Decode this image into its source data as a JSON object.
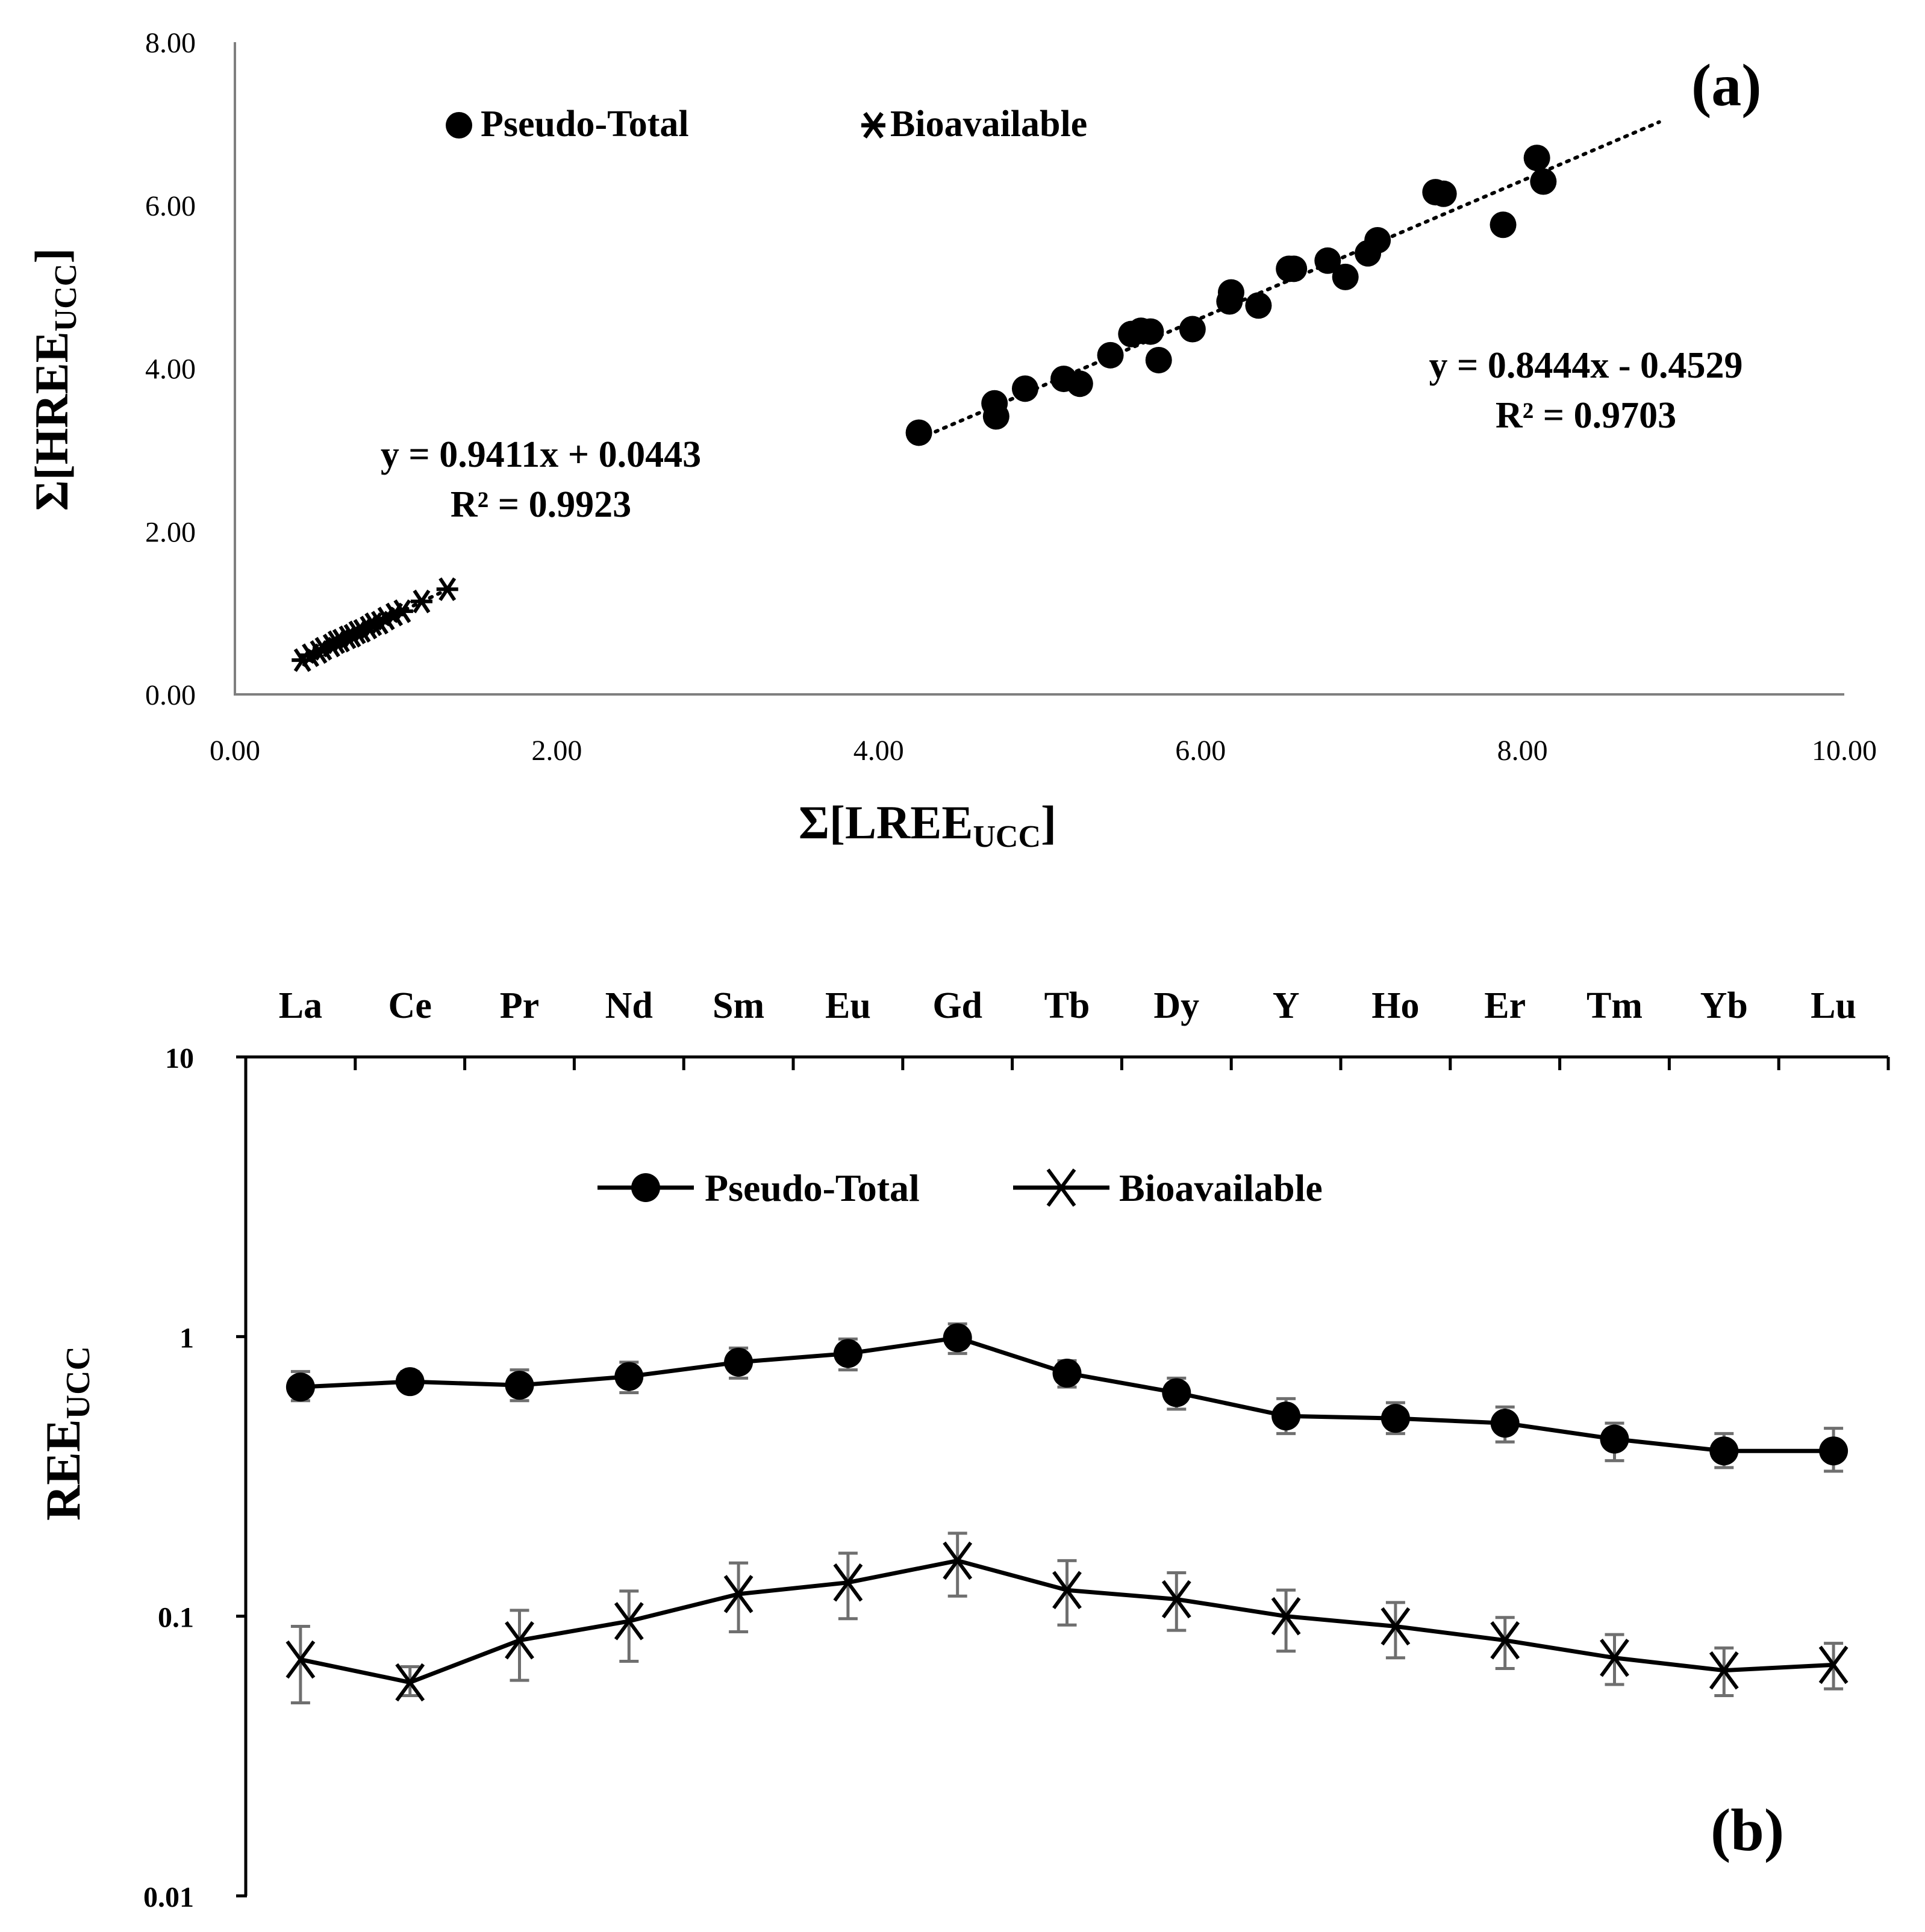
{
  "chart_data": [
    {
      "type": "scatter",
      "panel_label": "(a)",
      "xlabel_main": "Σ[LREE",
      "xlabel_sub": "UCC",
      "xlabel_close": "]",
      "ylabel_main": "Σ[HREE",
      "ylabel_sub": "UCC",
      "ylabel_close": "]",
      "xlim": [
        0,
        10
      ],
      "ylim": [
        0,
        8
      ],
      "x_ticks": [
        "0.00",
        "2.00",
        "4.00",
        "6.00",
        "8.00",
        "10.00"
      ],
      "y_ticks": [
        "0.00",
        "2.00",
        "4.00",
        "6.00",
        "8.00"
      ],
      "legend": [
        "Pseudo-Total",
        "Bioavailable"
      ],
      "series": [
        {
          "name": "Pseudo-Total",
          "marker": "circle",
          "points": [
            [
              4.25,
              3.21
            ],
            [
              4.72,
              3.57
            ],
            [
              4.73,
              3.41
            ],
            [
              4.91,
              3.75
            ],
            [
              5.15,
              3.87
            ],
            [
              5.25,
              3.81
            ],
            [
              5.44,
              4.16
            ],
            [
              5.57,
              4.42
            ],
            [
              5.63,
              4.46
            ],
            [
              5.69,
              4.45
            ],
            [
              5.74,
              4.1
            ],
            [
              5.95,
              4.48
            ],
            [
              6.18,
              4.82
            ],
            [
              6.19,
              4.93
            ],
            [
              6.36,
              4.77
            ],
            [
              6.55,
              5.22
            ],
            [
              6.58,
              5.22
            ],
            [
              6.79,
              5.32
            ],
            [
              6.9,
              5.12
            ],
            [
              7.04,
              5.41
            ],
            [
              7.1,
              5.57
            ],
            [
              7.46,
              6.16
            ],
            [
              7.51,
              6.14
            ],
            [
              7.88,
              5.76
            ],
            [
              8.09,
              6.58
            ],
            [
              8.13,
              6.29
            ]
          ],
          "trendline": {
            "equation": "y = 0.8444x - 0.4529",
            "r2": "R² = 0.9703",
            "x_range": [
              4.25,
              8.85
            ]
          }
        },
        {
          "name": "Bioavailable",
          "marker": "asterisk",
          "points": [
            [
              0.42,
              0.42
            ],
            [
              0.47,
              0.48
            ],
            [
              0.52,
              0.52
            ],
            [
              0.55,
              0.56
            ],
            [
              0.6,
              0.6
            ],
            [
              0.63,
              0.64
            ],
            [
              0.66,
              0.66
            ],
            [
              0.7,
              0.7
            ],
            [
              0.73,
              0.72
            ],
            [
              0.76,
              0.76
            ],
            [
              0.79,
              0.78
            ],
            [
              0.83,
              0.82
            ],
            [
              0.86,
              0.86
            ],
            [
              0.9,
              0.88
            ],
            [
              0.94,
              0.93
            ],
            [
              0.99,
              0.98
            ],
            [
              1.04,
              1.02
            ],
            [
              1.16,
              1.14
            ],
            [
              1.32,
              1.29
            ]
          ],
          "trendline": {
            "equation": "y = 0.9411x + 0.0443",
            "r2": "R² = 0.9923",
            "x_range": [
              0.4,
              1.35
            ]
          }
        }
      ]
    },
    {
      "type": "line",
      "panel_label": "(b)",
      "ylabel_main": "REE",
      "ylabel_sub": "UCC",
      "y_scale": "log",
      "ylim": [
        0.01,
        10
      ],
      "y_ticks": [
        "0.01",
        "0.1",
        "1",
        "10"
      ],
      "categories": [
        "La",
        "Ce",
        "Pr",
        "Nd",
        "Sm",
        "Eu",
        "Gd",
        "Tb",
        "Dy",
        "Y",
        "Ho",
        "Er",
        "Tm",
        "Yb",
        "Lu"
      ],
      "category_axis_position": "top",
      "legend": [
        "Pseudo-Total",
        "Bioavailable"
      ],
      "series": [
        {
          "name": "Pseudo-Total",
          "marker": "circle",
          "values": [
            0.66,
            0.69,
            0.67,
            0.72,
            0.81,
            0.87,
            0.99,
            0.74,
            0.63,
            0.52,
            0.51,
            0.49,
            0.43,
            0.39,
            0.39
          ],
          "err_low": [
            0.59,
            0.64,
            0.59,
            0.63,
            0.71,
            0.76,
            0.87,
            0.66,
            0.55,
            0.45,
            0.45,
            0.42,
            0.36,
            0.34,
            0.33
          ],
          "err_high": [
            0.75,
            0.75,
            0.76,
            0.81,
            0.91,
            0.98,
            1.11,
            0.82,
            0.71,
            0.6,
            0.58,
            0.56,
            0.49,
            0.45,
            0.47
          ]
        },
        {
          "name": "Bioavailable",
          "marker": "x",
          "values": [
            0.07,
            0.058,
            0.082,
            0.096,
            0.12,
            0.132,
            0.158,
            0.124,
            0.115,
            0.1,
            0.092,
            0.082,
            0.071,
            0.064,
            0.067
          ],
          "err_low": [
            0.049,
            0.052,
            0.059,
            0.069,
            0.088,
            0.098,
            0.118,
            0.093,
            0.089,
            0.075,
            0.071,
            0.065,
            0.057,
            0.052,
            0.055
          ],
          "err_high": [
            0.092,
            0.066,
            0.105,
            0.123,
            0.155,
            0.168,
            0.198,
            0.158,
            0.143,
            0.124,
            0.112,
            0.099,
            0.086,
            0.077,
            0.08
          ]
        }
      ]
    }
  ]
}
